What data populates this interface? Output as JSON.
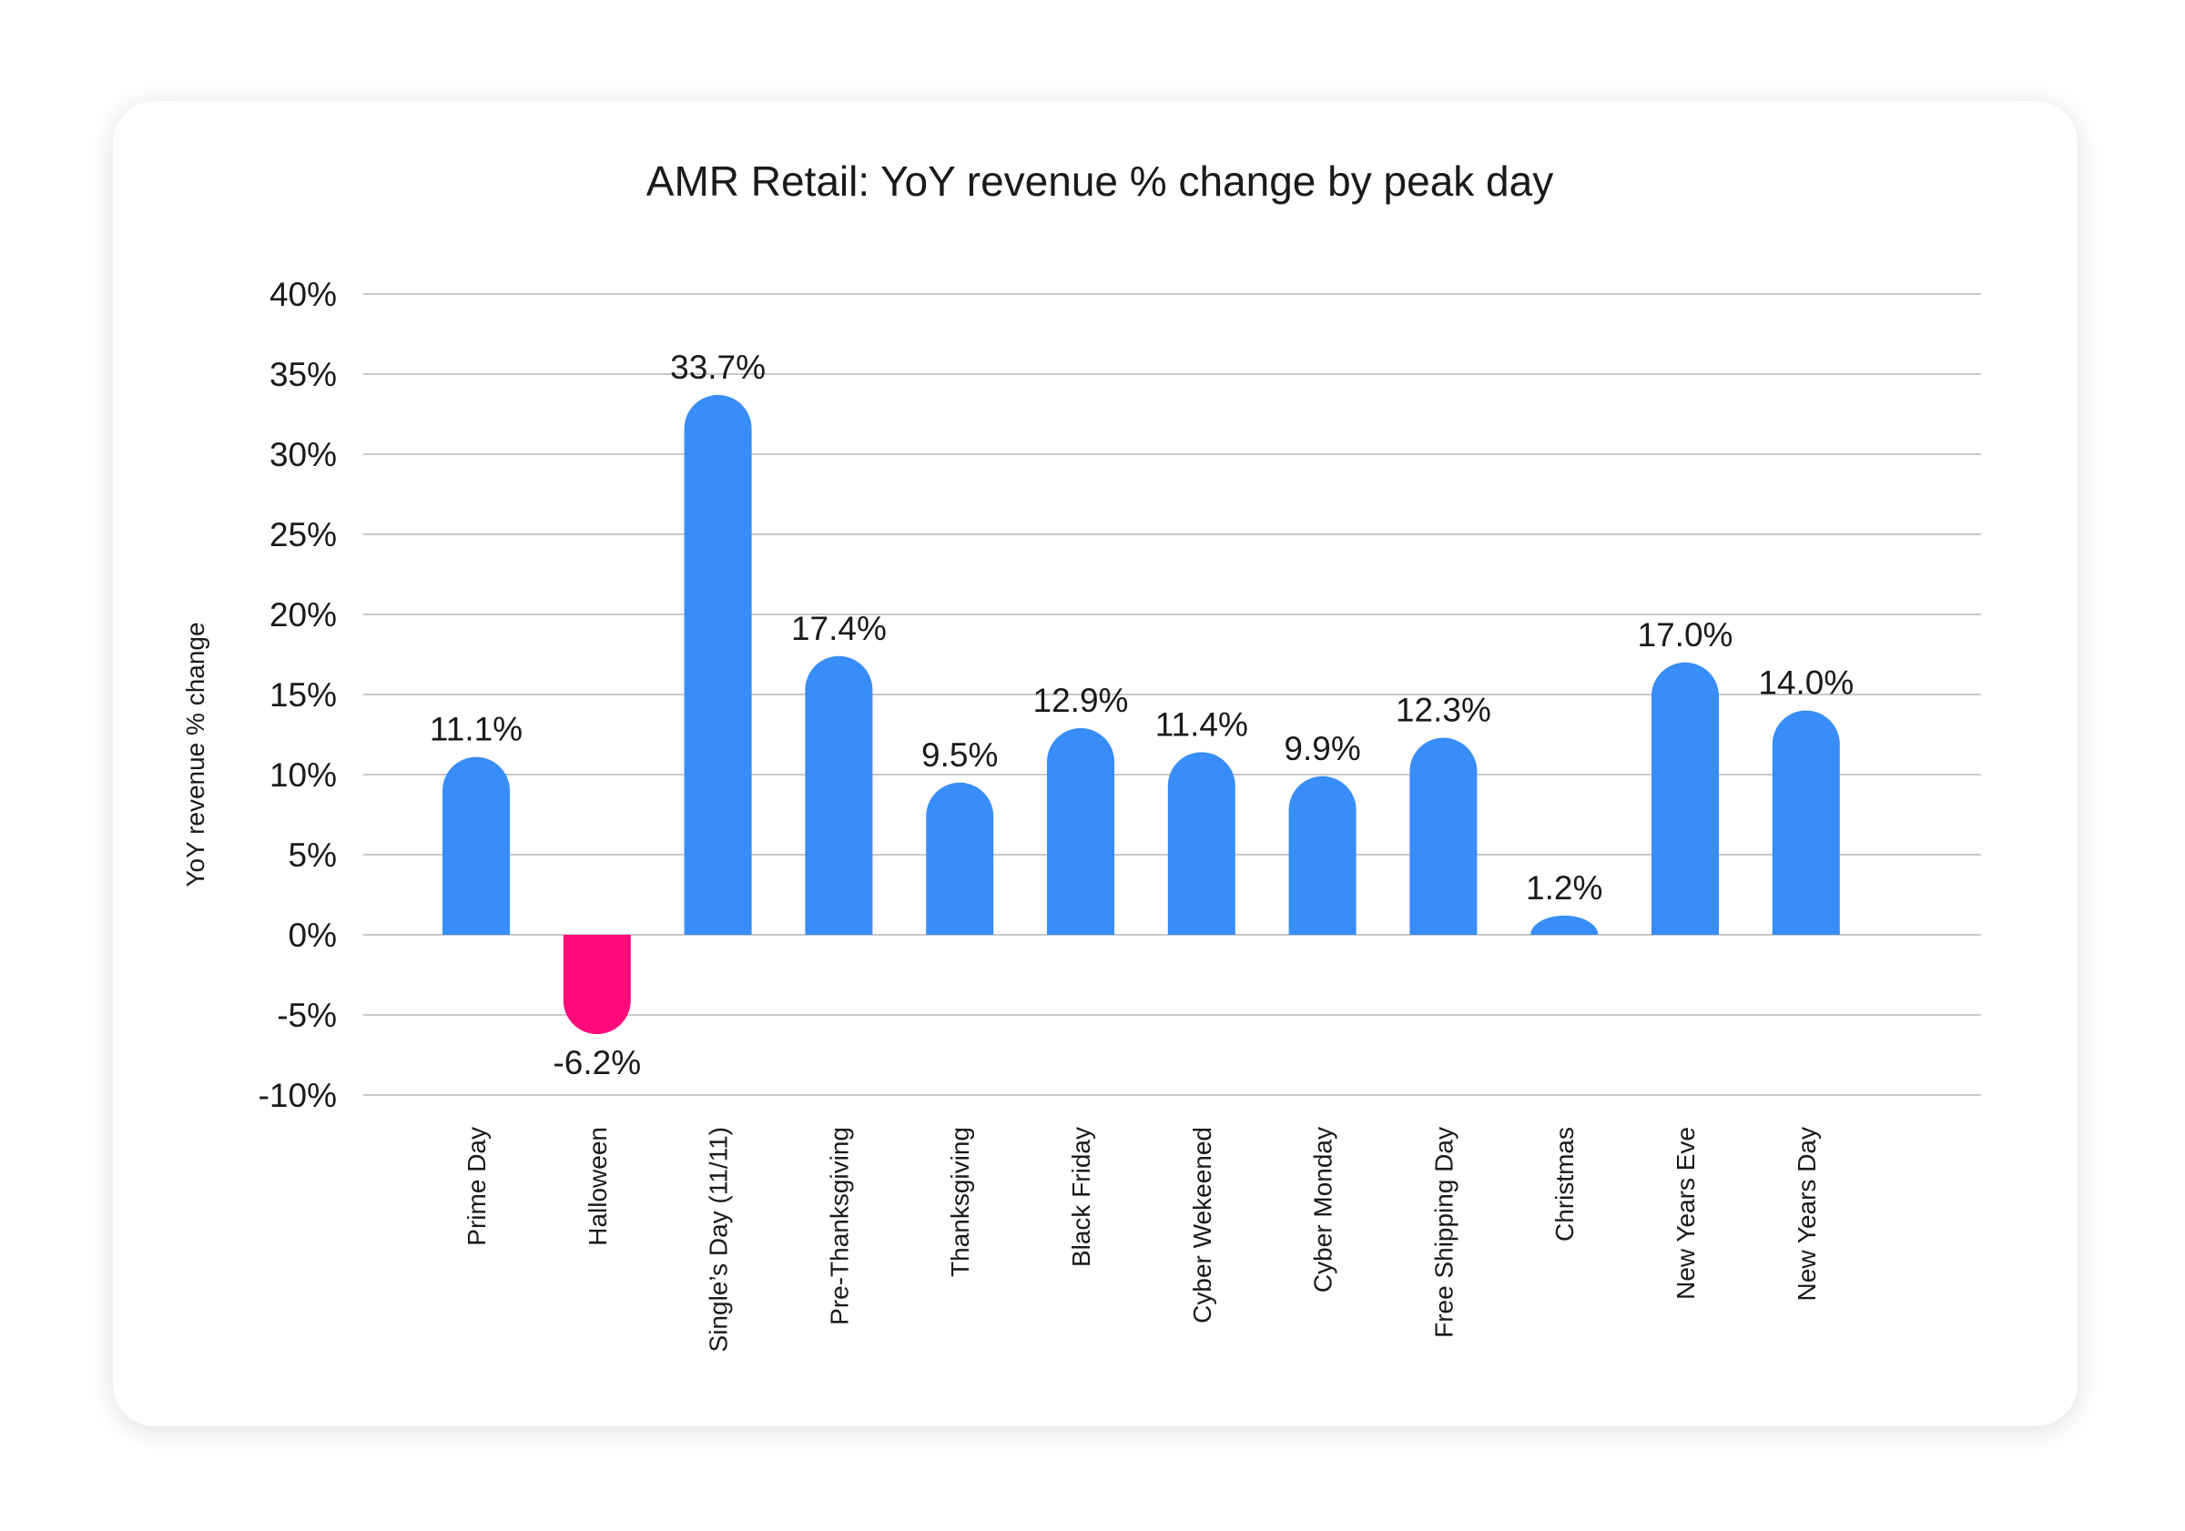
{
  "chart_data": {
    "type": "bar",
    "title": "AMR Retail: YoY revenue % change by peak day",
    "xlabel": "",
    "ylabel": "YoY revenue % change",
    "ylim": [
      -10,
      40
    ],
    "yticks": [
      "-10%",
      "-5%",
      "0%",
      "5%",
      "10%",
      "15%",
      "20%",
      "25%",
      "30%",
      "35%",
      "40%"
    ],
    "grid": true,
    "legend": "none",
    "categories": [
      "Prime Day",
      "Halloween",
      "Single’s Day (11/11)",
      "Pre-Thanksgiving",
      "Thanksgiving",
      "Black Friday",
      "Cyber Wekeened",
      "Cyber Monday",
      "Free Shipping Day",
      "Christmas",
      "New Years Eve",
      "New Years Day"
    ],
    "values": [
      11.1,
      -6.2,
      33.7,
      17.4,
      9.5,
      12.9,
      11.4,
      9.9,
      12.3,
      1.2,
      17.0,
      14.0
    ],
    "labels": [
      "11.1%",
      "-6.2%",
      "33.7%",
      "17.4%",
      "9.5%",
      "12.9%",
      "11.4%",
      "9.9%",
      "12.3%",
      "1.2%",
      "17.0%",
      "14.0%"
    ],
    "colors": {
      "positive": "#388DF8",
      "negative": "#FF0A7A",
      "grid": "#c8c8c8",
      "text": "#1a1a1a"
    }
  }
}
